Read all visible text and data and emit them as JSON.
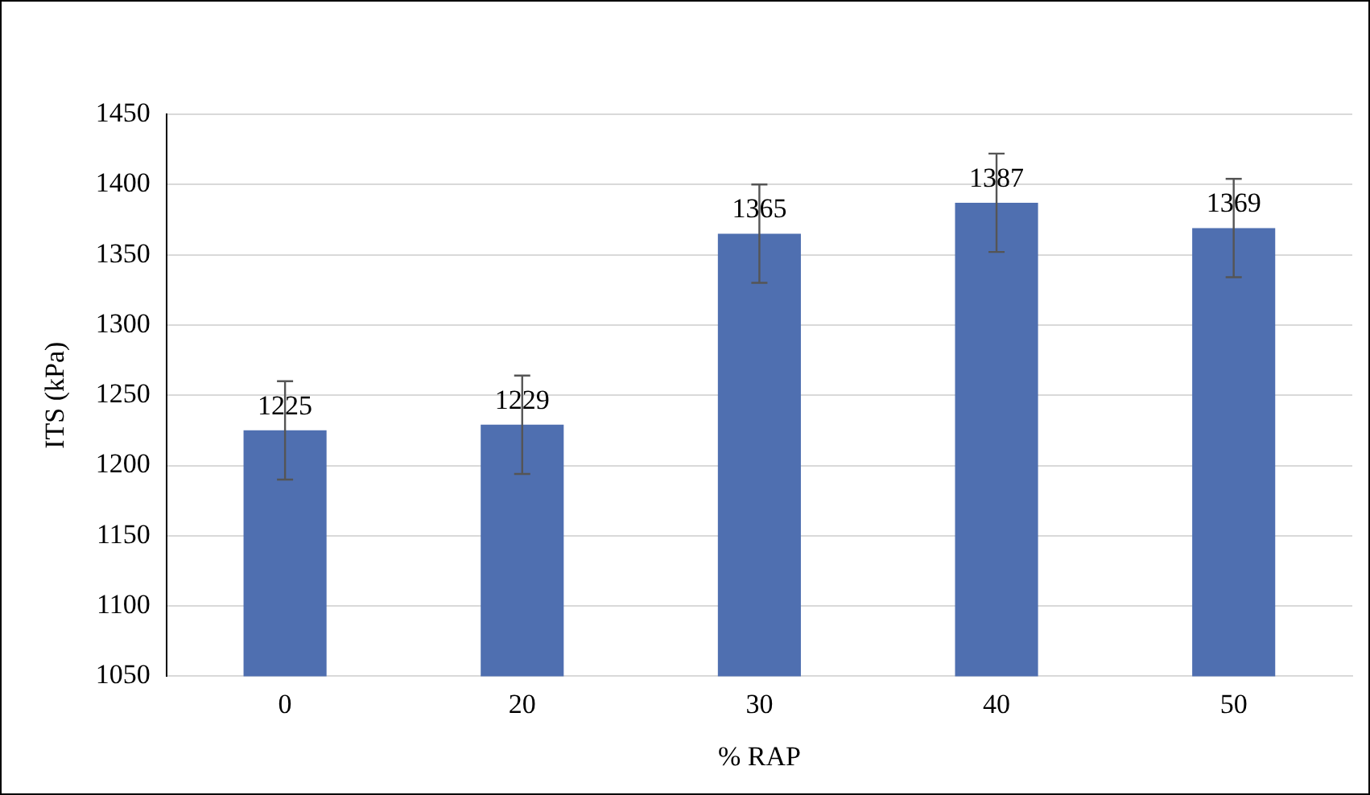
{
  "chart_data": {
    "type": "bar",
    "xlabel": "% RAP",
    "ylabel": "ITS (kPa)",
    "categories": [
      "0",
      "20",
      "30",
      "40",
      "50"
    ],
    "values": [
      1225,
      1229,
      1365,
      1387,
      1369
    ],
    "errors": [
      35,
      35,
      35,
      35,
      35
    ],
    "color": "#4f6fb0",
    "ylim": [
      1050,
      1450
    ],
    "yticks": [
      1050,
      1100,
      1150,
      1200,
      1250,
      1300,
      1350,
      1400,
      1450
    ],
    "grid": "y",
    "data_labels": true
  }
}
